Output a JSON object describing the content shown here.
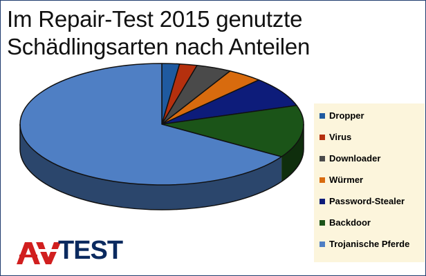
{
  "title_lines": [
    "Im Repair-Test 2015 genutzte",
    "Schädlingsarten nach Anteilen"
  ],
  "chart_data": {
    "type": "pie",
    "title": "Im Repair-Test 2015 genutzte Schädlingsarten nach Anteilen",
    "series": [
      {
        "name": "Dropper",
        "value": 2.0,
        "color": "#1f5aa0"
      },
      {
        "name": "Virus",
        "value": 2.0,
        "color": "#b5300e"
      },
      {
        "name": "Downloader",
        "value": 4.0,
        "color": "#4a4a4a"
      },
      {
        "name": "Würmer",
        "value": 4.0,
        "color": "#d86b0e"
      },
      {
        "name": "Password-Stealer",
        "value": 8.0,
        "color": "#0d1c7a"
      },
      {
        "name": "Backdoor",
        "value": 14.0,
        "color": "#1b5418"
      },
      {
        "name": "Trojanische Pferde",
        "value": 66.0,
        "color": "#4f7fc4"
      }
    ],
    "legend_position": "right"
  },
  "logo": {
    "symbol": "AV",
    "text": "TEST",
    "colors": {
      "red": "#d11f1f",
      "navy": "#0b2a5f"
    }
  }
}
